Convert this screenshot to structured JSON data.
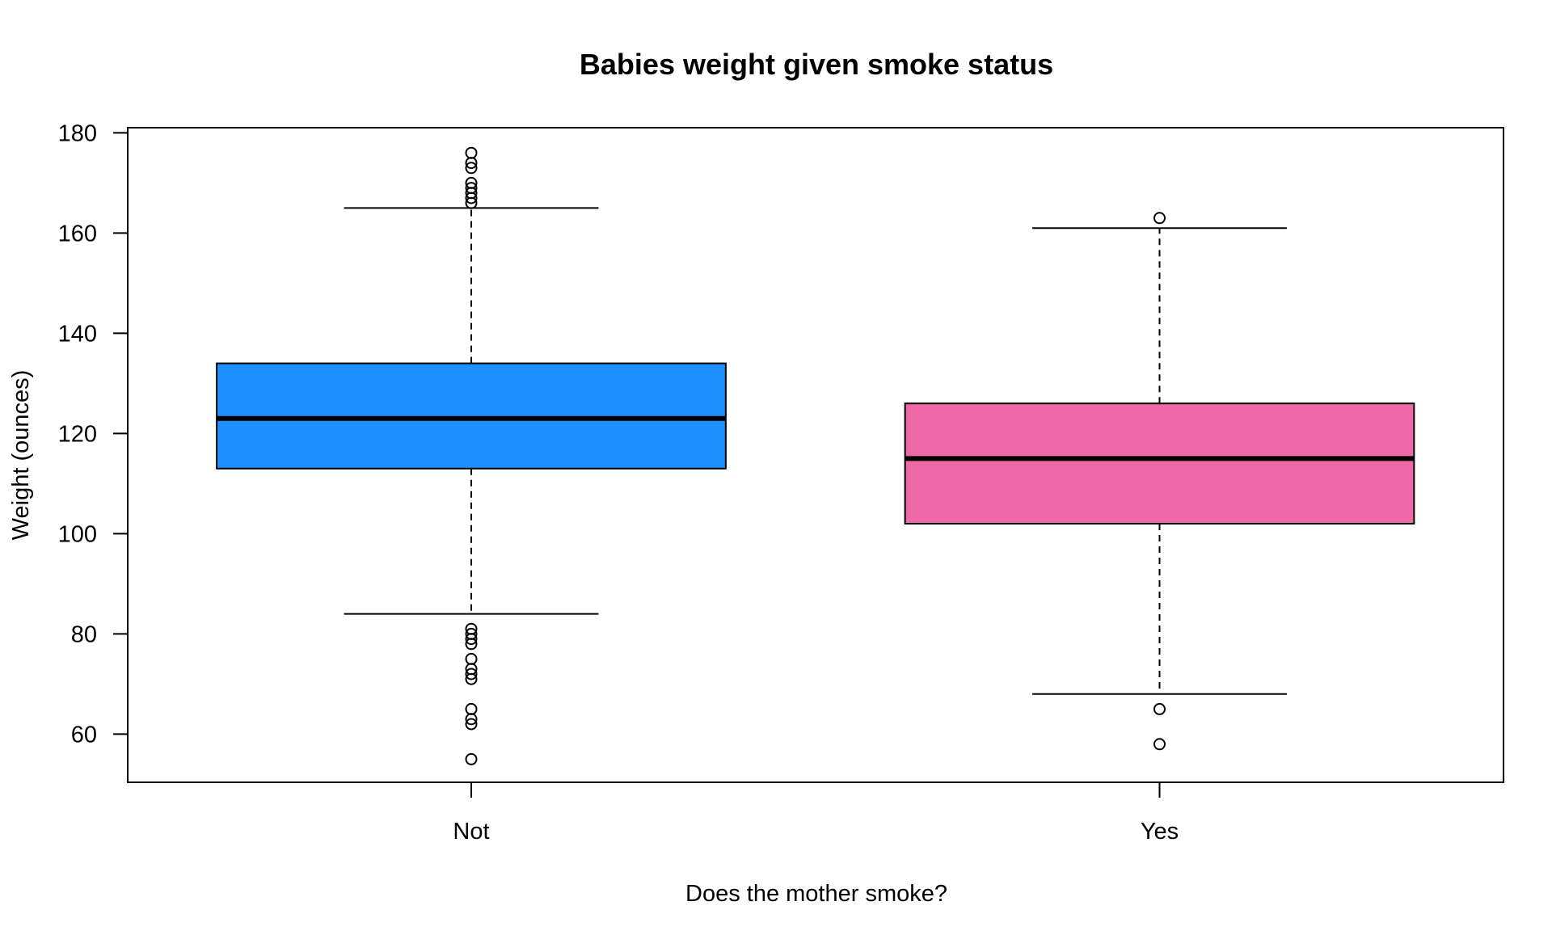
{
  "chart_data": {
    "type": "boxplot",
    "title": "Babies weight given smoke status",
    "xlabel": "Does the mother smoke?",
    "ylabel": "Weight (ounces)",
    "ylim": [
      50,
      180
    ],
    "y_ticks": [
      "60",
      "80",
      "100",
      "120",
      "140",
      "160",
      "180"
    ],
    "grid": false,
    "legend": "none",
    "categories": [
      "Not",
      "Yes"
    ],
    "boxes": [
      {
        "category": "Not",
        "color": "#1E90FF",
        "whisker_low": 84,
        "q1": 113,
        "median": 123,
        "q3": 134,
        "whisker_high": 165,
        "outliers": [
          55,
          62,
          63,
          65,
          71,
          72,
          73,
          75,
          78,
          79,
          80,
          81,
          166,
          167,
          168,
          169,
          170,
          173,
          174,
          176
        ]
      },
      {
        "category": "Yes",
        "color": "#EE6AA7",
        "whisker_low": 68,
        "q1": 102,
        "median": 115,
        "q3": 126,
        "whisker_high": 161,
        "outliers": [
          58,
          65,
          163
        ]
      }
    ]
  }
}
